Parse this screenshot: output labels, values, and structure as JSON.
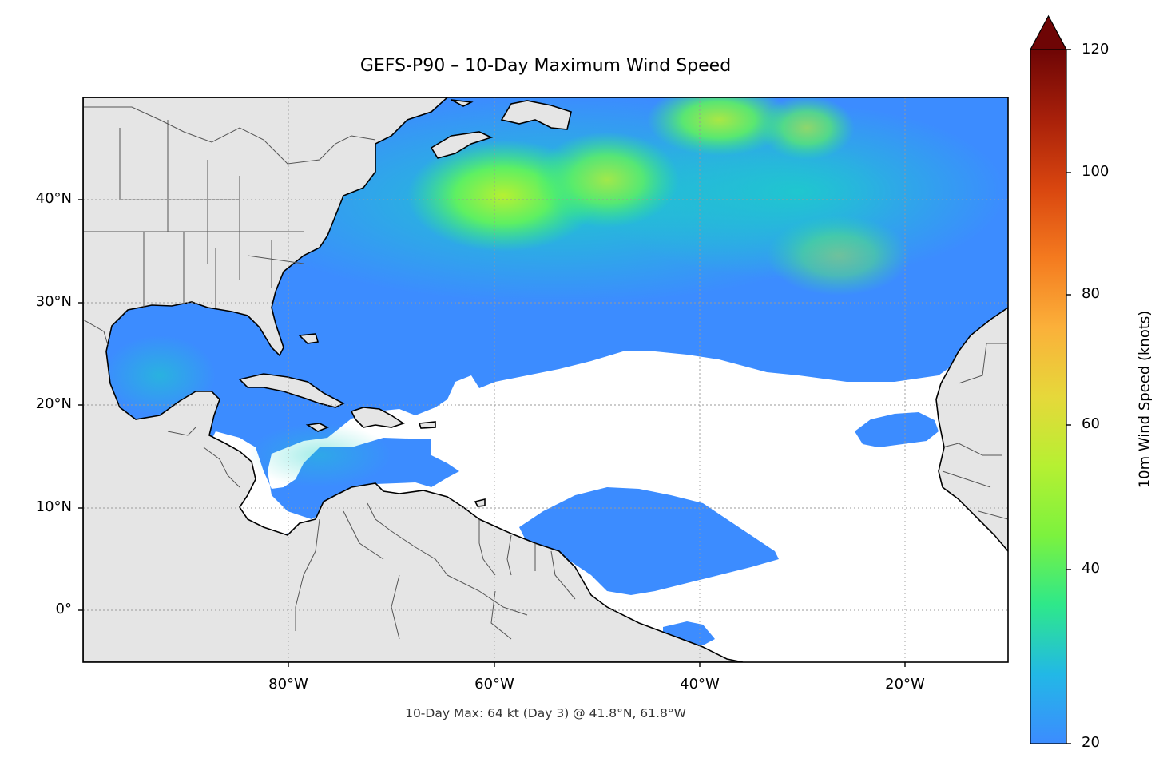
{
  "title": "GEFS-P90 – 10-Day Maximum Wind Speed",
  "footnote": "10-Day Max: 64 kt (Day 3) @ 41.8°N, 61.8°W",
  "map": {
    "projection": "PlateCarree",
    "extent": {
      "lon_min": -100,
      "lon_max": -10,
      "lat_min": -5,
      "lat_max": 50
    },
    "gridlines": "dotted",
    "land_color": "#e5e5e5",
    "ocean_below_threshold_color": "#ffffff",
    "lat_ticks": [
      {
        "value": 40,
        "label": "40°N"
      },
      {
        "value": 30,
        "label": "30°N"
      },
      {
        "value": 20,
        "label": "20°N"
      },
      {
        "value": 10,
        "label": "10°N"
      },
      {
        "value": 0,
        "label": "0°"
      }
    ],
    "lon_ticks": [
      {
        "value": -80,
        "label": "80°W"
      },
      {
        "value": -60,
        "label": "60°W"
      },
      {
        "value": -40,
        "label": "40°W"
      },
      {
        "value": -20,
        "label": "20°W"
      }
    ]
  },
  "colorbar": {
    "label": "10m Wind Speed (knots)",
    "min": 20,
    "max": 120,
    "extend": "max",
    "ticks": [
      {
        "value": 120,
        "label": "120"
      },
      {
        "value": 100,
        "label": "100"
      },
      {
        "value": 80,
        "label": "80"
      },
      {
        "value": 60,
        "label": "60"
      },
      {
        "value": 40,
        "label": "40"
      },
      {
        "value": 20,
        "label": "20"
      }
    ],
    "colors": [
      "#3c8cff",
      "#22b8e6",
      "#1ad1c6",
      "#2ee88a",
      "#7cf23e",
      "#b6f032",
      "#e6d83a",
      "#fbb03a",
      "#f47a1f",
      "#d9460f",
      "#a8200a",
      "#6e0505"
    ],
    "extend_color": "#6e0505"
  },
  "chart_data": {
    "type": "heatmap",
    "variable": "10m Wind Speed (knots)",
    "max_value_kt": 64,
    "max_day": 3,
    "max_location": {
      "lat": 41.8,
      "lon": -61.8
    }
  }
}
